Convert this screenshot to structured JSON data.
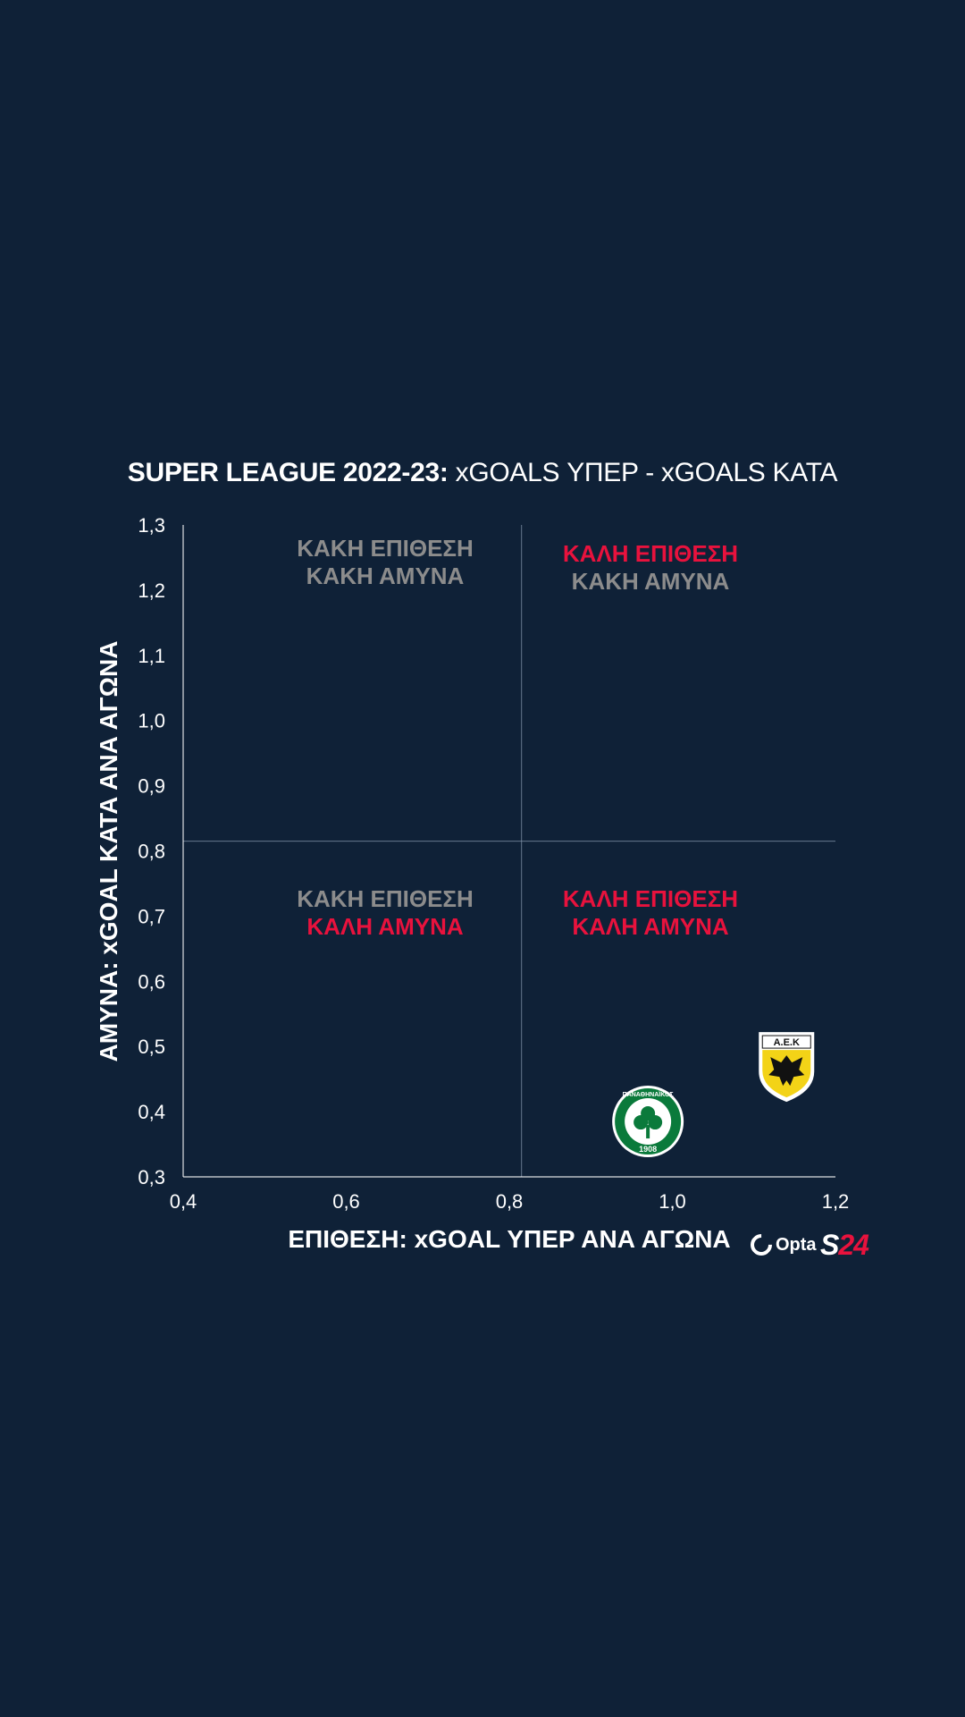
{
  "title": {
    "bold": "SUPER LEAGUE 2022-23:",
    "normal": " xGOALS ΥΠΕΡ - xGOALS ΚΑΤΑ"
  },
  "chart_data": {
    "type": "scatter",
    "xlabel": "ΕΠΙΘΕΣΗ: xGOAL ΥΠΕΡ ΑΝΑ ΑΓΩΝΑ",
    "ylabel": "ΑΜΥΝΑ: xGOAL ΚΑΤΑ ΑΝΑ ΑΓΩΝΑ",
    "xlim": [
      0.4,
      1.2
    ],
    "ylim": [
      0.3,
      1.3
    ],
    "x_ticks": [
      "0,4",
      "0,6",
      "0,8",
      "1,0",
      "1,2"
    ],
    "y_ticks": [
      "0,3",
      "0,4",
      "0,5",
      "0,6",
      "0,7",
      "0,8",
      "0,9",
      "1,0",
      "1,1",
      "1,2",
      "1,3"
    ],
    "reference_lines": {
      "x": 0.815,
      "y": 0.815
    },
    "points": [
      {
        "x": 0.97,
        "y": 0.385,
        "logo": "panathinaikos-crest",
        "color": "#0a7a3b",
        "label": "ΠΑΝΑΘΗΝΑΪΚΟΣ",
        "year": "1908"
      },
      {
        "x": 1.14,
        "y": 0.47,
        "logo": "aek-crest",
        "color": "#f3d317",
        "label": "Α.Ε.Κ"
      }
    ],
    "quadrant_labels": [
      {
        "position": "top-left",
        "line1": "ΚΑΚΗ ΕΠΙΘΕΣΗ",
        "line1_tone": "bad",
        "line2": "ΚΑΚΗ ΑΜΥΝΑ",
        "line2_tone": "bad"
      },
      {
        "position": "top-right",
        "line1": "ΚΑΛΗ ΕΠΙΘΕΣΗ",
        "line1_tone": "good",
        "line2": "ΚΑΚΗ ΑΜΥΝΑ",
        "line2_tone": "bad"
      },
      {
        "position": "bottom-left",
        "line1": "ΚΑΚΗ ΕΠΙΘΕΣΗ",
        "line1_tone": "bad",
        "line2": "ΚΑΛΗ ΑΜΥΝΑ",
        "line2_tone": "good"
      },
      {
        "position": "bottom-right",
        "line1": "ΚΑΛΗ ΕΠΙΘΕΣΗ",
        "line1_tone": "good",
        "line2": "ΚΑΛΗ ΑΜΥΝΑ",
        "line2_tone": "good"
      }
    ],
    "colors": {
      "background": "#0f2137",
      "good": "#e8123d",
      "bad": "#8c8c8c",
      "axis": "#ffffff"
    }
  },
  "branding": {
    "opta": "Opta",
    "s24_s": "S",
    "s24_n": "24"
  }
}
